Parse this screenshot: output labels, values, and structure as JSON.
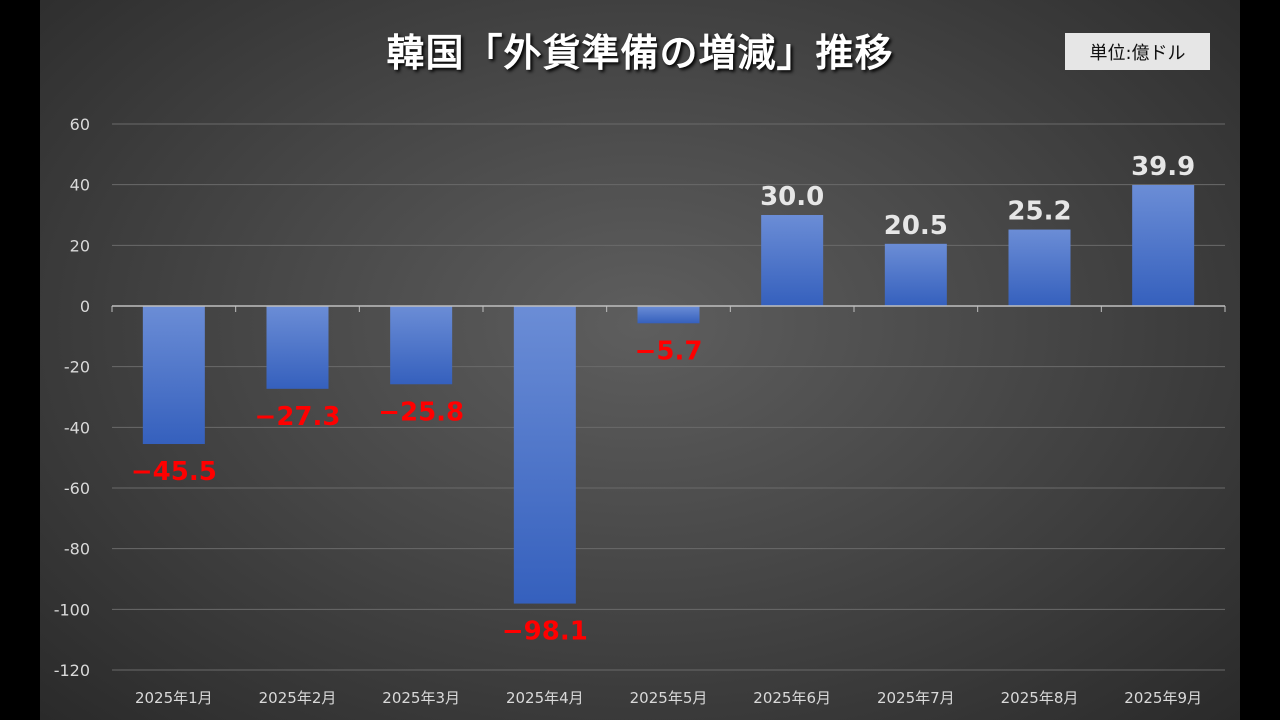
{
  "chart_data": {
    "type": "bar",
    "title": "韓国「外貨準備の増減」推移",
    "unit_label": "単位:億ドル",
    "categories": [
      "2025年1月",
      "2025年2月",
      "2025年3月",
      "2025年4月",
      "2025年5月",
      "2025年6月",
      "2025年7月",
      "2025年8月",
      "2025年9月"
    ],
    "values": [
      -45.5,
      -27.3,
      -25.8,
      -98.1,
      -5.7,
      30.0,
      20.5,
      25.2,
      39.9
    ],
    "data_labels": [
      "−45.5",
      "−27.3",
      "−25.8",
      "−98.1",
      "−5.7",
      "30.0",
      "20.5",
      "25.2",
      "39.9"
    ],
    "ylim": [
      -120,
      60
    ],
    "yticks": [
      60,
      40,
      20,
      0,
      -20,
      -40,
      -60,
      -80,
      -100,
      -120
    ],
    "grid": true,
    "colors": {
      "bar_top": "#6b8dd6",
      "bar_bottom": "#3560bd",
      "negative_label": "#ff0000",
      "positive_label": "#e6e6e6"
    }
  }
}
